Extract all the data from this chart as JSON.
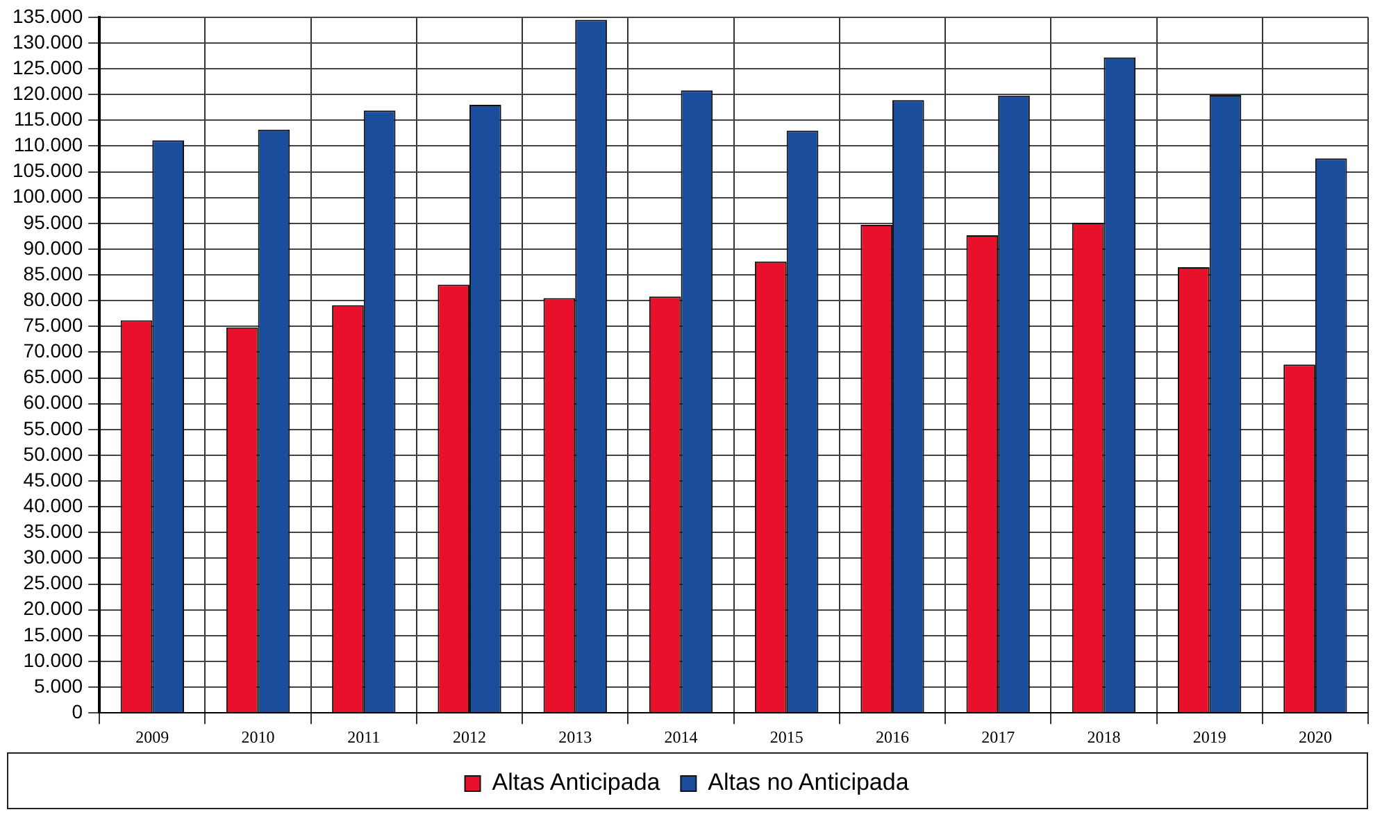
{
  "chart_data": {
    "type": "bar",
    "categories": [
      "2009",
      "2010",
      "2011",
      "2012",
      "2013",
      "2014",
      "2015",
      "2016",
      "2017",
      "2018",
      "2019",
      "2020"
    ],
    "series": [
      {
        "name": "Altas Anticipada",
        "color": "#e8102a",
        "values": [
          76200,
          74800,
          79100,
          83100,
          80500,
          80800,
          87600,
          94700,
          92700,
          95100,
          86500,
          67600
        ]
      },
      {
        "name": "Altas no Anticipada",
        "color": "#1a4d9c",
        "values": [
          111100,
          113200,
          116900,
          118000,
          134500,
          120800,
          113000,
          118900,
          119800,
          127200,
          119900,
          107600
        ]
      }
    ],
    "ylim": [
      0,
      135000
    ],
    "yticks": [
      {
        "value": 0,
        "label": "0"
      },
      {
        "value": 5000,
        "label": "5.000"
      },
      {
        "value": 10000,
        "label": "10.000"
      },
      {
        "value": 15000,
        "label": "15.000"
      },
      {
        "value": 20000,
        "label": "20.000"
      },
      {
        "value": 25000,
        "label": "25.000"
      },
      {
        "value": 30000,
        "label": "30.000"
      },
      {
        "value": 35000,
        "label": "35.000"
      },
      {
        "value": 40000,
        "label": "40.000"
      },
      {
        "value": 45000,
        "label": "45.000"
      },
      {
        "value": 50000,
        "label": "50.000"
      },
      {
        "value": 55000,
        "label": "55.000"
      },
      {
        "value": 60000,
        "label": "60.000"
      },
      {
        "value": 65000,
        "label": "65.000"
      },
      {
        "value": 70000,
        "label": "70.000"
      },
      {
        "value": 75000,
        "label": "75.000"
      },
      {
        "value": 80000,
        "label": "80.000"
      },
      {
        "value": 85000,
        "label": "85.000"
      },
      {
        "value": 90000,
        "label": "90.000"
      },
      {
        "value": 95000,
        "label": "95.000"
      },
      {
        "value": 100000,
        "label": "100.000"
      },
      {
        "value": 105000,
        "label": "105.000"
      },
      {
        "value": 110000,
        "label": "110.000"
      },
      {
        "value": 115000,
        "label": "115.000"
      },
      {
        "value": 120000,
        "label": "120.000"
      },
      {
        "value": 125000,
        "label": "125.000"
      },
      {
        "value": 130000,
        "label": "130.000"
      },
      {
        "value": 135000,
        "label": "135.000"
      }
    ],
    "grid": true,
    "legend": "bottom"
  }
}
